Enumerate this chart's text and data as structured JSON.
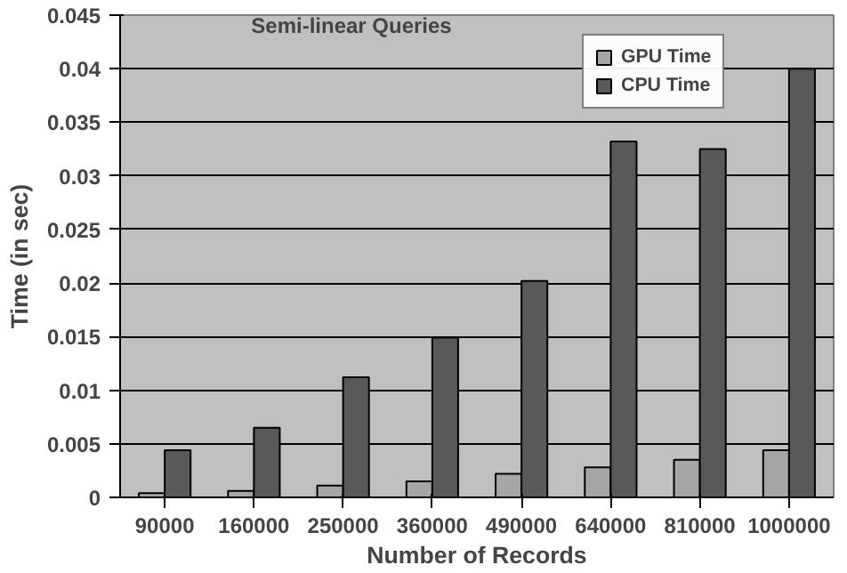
{
  "chart_data": {
    "type": "bar",
    "title": "Semi-linear Queries",
    "xlabel": "Number of Records",
    "ylabel": "Time (in sec)",
    "categories": [
      "90000",
      "160000",
      "250000",
      "360000",
      "490000",
      "640000",
      "810000",
      "1000000"
    ],
    "series": [
      {
        "name": "GPU Time",
        "color": "#a6a6a6",
        "values": [
          0.0004,
          0.0006,
          0.0011,
          0.0015,
          0.0022,
          0.0028,
          0.0035,
          0.0044
        ]
      },
      {
        "name": "CPU Time",
        "color": "#595959",
        "values": [
          0.0044,
          0.0065,
          0.0112,
          0.0149,
          0.0202,
          0.0332,
          0.0325,
          0.04
        ]
      }
    ],
    "ylim": [
      0,
      0.045
    ],
    "yticks": [
      0,
      0.005,
      0.01,
      0.015,
      0.02,
      0.025,
      0.03,
      0.035,
      0.04,
      0.045
    ],
    "grid": "y",
    "legend": "top right"
  }
}
